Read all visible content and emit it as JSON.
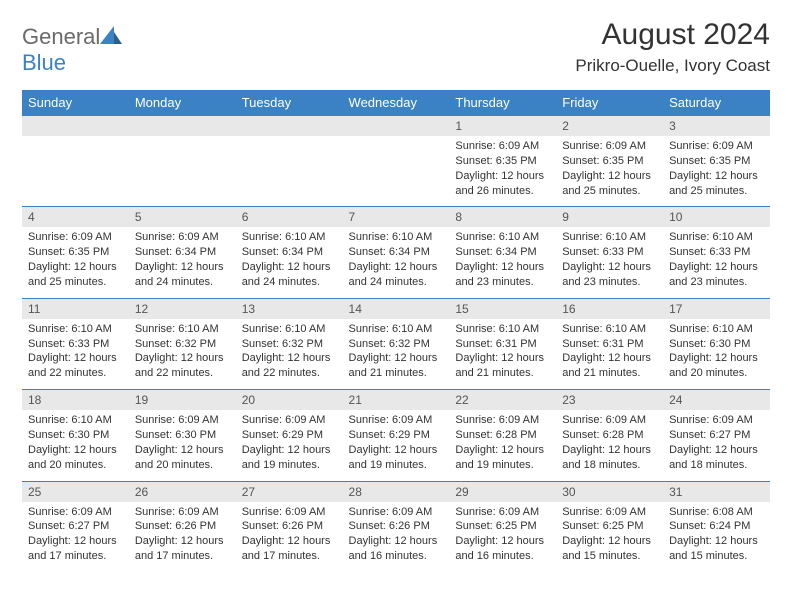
{
  "logo": {
    "text1": "General",
    "text2": "Blue"
  },
  "title": "August 2024",
  "subtitle": "Prikro-Ouelle, Ivory Coast",
  "header_bg": "#3b82c4",
  "daterow_bg": "#e8e8e8",
  "border_color": "#3b82c4",
  "days": [
    "Sunday",
    "Monday",
    "Tuesday",
    "Wednesday",
    "Thursday",
    "Friday",
    "Saturday"
  ],
  "weeks": [
    {
      "dates": [
        "",
        "",
        "",
        "",
        "1",
        "2",
        "3"
      ],
      "info": [
        "",
        "",
        "",
        "",
        "Sunrise: 6:09 AM\nSunset: 6:35 PM\nDaylight: 12 hours and 26 minutes.",
        "Sunrise: 6:09 AM\nSunset: 6:35 PM\nDaylight: 12 hours and 25 minutes.",
        "Sunrise: 6:09 AM\nSunset: 6:35 PM\nDaylight: 12 hours and 25 minutes."
      ]
    },
    {
      "dates": [
        "4",
        "5",
        "6",
        "7",
        "8",
        "9",
        "10"
      ],
      "info": [
        "Sunrise: 6:09 AM\nSunset: 6:35 PM\nDaylight: 12 hours and 25 minutes.",
        "Sunrise: 6:09 AM\nSunset: 6:34 PM\nDaylight: 12 hours and 24 minutes.",
        "Sunrise: 6:10 AM\nSunset: 6:34 PM\nDaylight: 12 hours and 24 minutes.",
        "Sunrise: 6:10 AM\nSunset: 6:34 PM\nDaylight: 12 hours and 24 minutes.",
        "Sunrise: 6:10 AM\nSunset: 6:34 PM\nDaylight: 12 hours and 23 minutes.",
        "Sunrise: 6:10 AM\nSunset: 6:33 PM\nDaylight: 12 hours and 23 minutes.",
        "Sunrise: 6:10 AM\nSunset: 6:33 PM\nDaylight: 12 hours and 23 minutes."
      ]
    },
    {
      "dates": [
        "11",
        "12",
        "13",
        "14",
        "15",
        "16",
        "17"
      ],
      "info": [
        "Sunrise: 6:10 AM\nSunset: 6:33 PM\nDaylight: 12 hours and 22 minutes.",
        "Sunrise: 6:10 AM\nSunset: 6:32 PM\nDaylight: 12 hours and 22 minutes.",
        "Sunrise: 6:10 AM\nSunset: 6:32 PM\nDaylight: 12 hours and 22 minutes.",
        "Sunrise: 6:10 AM\nSunset: 6:32 PM\nDaylight: 12 hours and 21 minutes.",
        "Sunrise: 6:10 AM\nSunset: 6:31 PM\nDaylight: 12 hours and 21 minutes.",
        "Sunrise: 6:10 AM\nSunset: 6:31 PM\nDaylight: 12 hours and 21 minutes.",
        "Sunrise: 6:10 AM\nSunset: 6:30 PM\nDaylight: 12 hours and 20 minutes."
      ]
    },
    {
      "dates": [
        "18",
        "19",
        "20",
        "21",
        "22",
        "23",
        "24"
      ],
      "info": [
        "Sunrise: 6:10 AM\nSunset: 6:30 PM\nDaylight: 12 hours and 20 minutes.",
        "Sunrise: 6:09 AM\nSunset: 6:30 PM\nDaylight: 12 hours and 20 minutes.",
        "Sunrise: 6:09 AM\nSunset: 6:29 PM\nDaylight: 12 hours and 19 minutes.",
        "Sunrise: 6:09 AM\nSunset: 6:29 PM\nDaylight: 12 hours and 19 minutes.",
        "Sunrise: 6:09 AM\nSunset: 6:28 PM\nDaylight: 12 hours and 19 minutes.",
        "Sunrise: 6:09 AM\nSunset: 6:28 PM\nDaylight: 12 hours and 18 minutes.",
        "Sunrise: 6:09 AM\nSunset: 6:27 PM\nDaylight: 12 hours and 18 minutes."
      ]
    },
    {
      "dates": [
        "25",
        "26",
        "27",
        "28",
        "29",
        "30",
        "31"
      ],
      "info": [
        "Sunrise: 6:09 AM\nSunset: 6:27 PM\nDaylight: 12 hours and 17 minutes.",
        "Sunrise: 6:09 AM\nSunset: 6:26 PM\nDaylight: 12 hours and 17 minutes.",
        "Sunrise: 6:09 AM\nSunset: 6:26 PM\nDaylight: 12 hours and 17 minutes.",
        "Sunrise: 6:09 AM\nSunset: 6:26 PM\nDaylight: 12 hours and 16 minutes.",
        "Sunrise: 6:09 AM\nSunset: 6:25 PM\nDaylight: 12 hours and 16 minutes.",
        "Sunrise: 6:09 AM\nSunset: 6:25 PM\nDaylight: 12 hours and 15 minutes.",
        "Sunrise: 6:08 AM\nSunset: 6:24 PM\nDaylight: 12 hours and 15 minutes."
      ]
    }
  ]
}
